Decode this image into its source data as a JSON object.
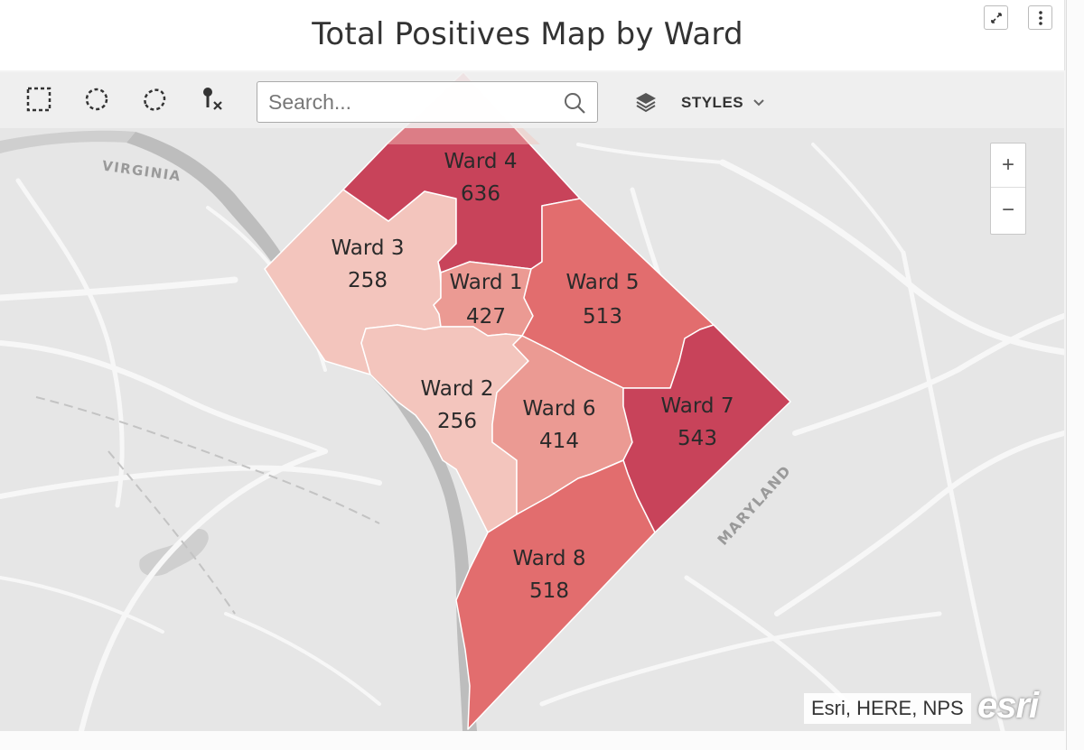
{
  "header": {
    "title": "Total Positives Map by Ward",
    "expand_icon": "expand-arrows-icon",
    "menu_icon": "vertical-ellipsis-icon"
  },
  "toolbar": {
    "tools": [
      {
        "name": "rectangle-select-tool",
        "icon": "dashed-rectangle-icon"
      },
      {
        "name": "circle-select-tool",
        "icon": "dashed-circle-icon"
      },
      {
        "name": "lasso-select-tool",
        "icon": "dashed-lasso-icon"
      },
      {
        "name": "clear-selection-tool",
        "icon": "pin-clear-icon"
      }
    ],
    "search_placeholder": "Search...",
    "search_icon": "magnifier-icon",
    "layers_icon": "layers-icon",
    "styles_label": "STYLES",
    "styles_chevron_icon": "chevron-down-icon"
  },
  "map": {
    "region_labels": {
      "virginia": "VIRGINIA",
      "maryland": "MARYLAND"
    },
    "colors": {
      "water": "#bdbdbd",
      "land": "#e6e6e6",
      "roads": "#f7f7f7",
      "borders": "#ffffff"
    },
    "wards": [
      {
        "id": "ward-1",
        "label": "Ward 1",
        "value": "427",
        "color": "#eb9a93"
      },
      {
        "id": "ward-2",
        "label": "Ward 2",
        "value": "256",
        "color": "#f3c5bd"
      },
      {
        "id": "ward-3",
        "label": "Ward 3",
        "value": "258",
        "color": "#f3c5bd"
      },
      {
        "id": "ward-4",
        "label": "Ward 4",
        "value": "636",
        "color": "#c8435a"
      },
      {
        "id": "ward-5",
        "label": "Ward 5",
        "value": "513",
        "color": "#e26d6e"
      },
      {
        "id": "ward-6",
        "label": "Ward 6",
        "value": "414",
        "color": "#eb9a93"
      },
      {
        "id": "ward-7",
        "label": "Ward 7",
        "value": "543",
        "color": "#c8435a"
      },
      {
        "id": "ward-8",
        "label": "Ward 8",
        "value": "518",
        "color": "#e26d6e"
      }
    ],
    "zoom_in_label": "+",
    "zoom_out_label": "−",
    "attribution": "Esri, HERE, NPS",
    "logo_text": "esri"
  }
}
